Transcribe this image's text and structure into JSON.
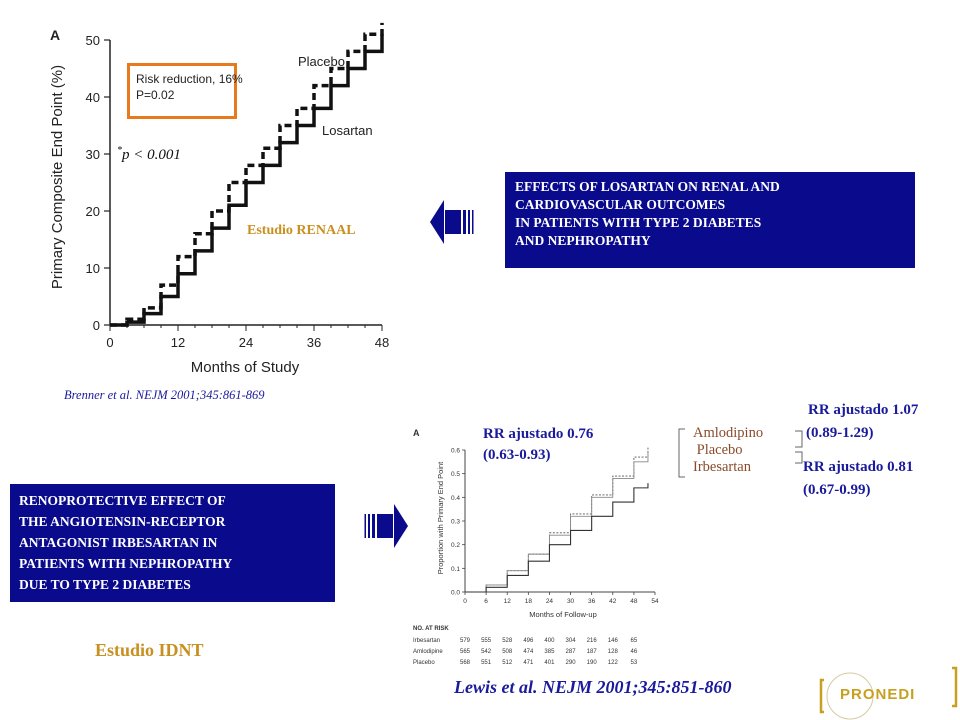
{
  "chart_data": [
    {
      "type": "line",
      "panel_label": "A",
      "xlabel": "Months of Study",
      "ylabel": "Primary Composite End Point (%)",
      "xlim": [
        0,
        48
      ],
      "ylim": [
        0,
        50
      ],
      "x_ticks": [
        "0",
        "12",
        "24",
        "36",
        "48"
      ],
      "y_ticks": [
        "0",
        "10",
        "20",
        "30",
        "40",
        "50"
      ],
      "series": [
        {
          "name": "Placebo",
          "style": "dashed",
          "x": [
            0,
            3,
            6,
            9,
            12,
            15,
            18,
            21,
            24,
            27,
            30,
            33,
            36,
            39,
            42,
            45,
            48
          ],
          "y": [
            0,
            1,
            3,
            7,
            12,
            16,
            20,
            25,
            28,
            31,
            35,
            38,
            42,
            45,
            48,
            51,
            53
          ]
        },
        {
          "name": "Losartan",
          "style": "solid",
          "x": [
            0,
            3,
            6,
            9,
            12,
            15,
            18,
            21,
            24,
            27,
            30,
            33,
            36,
            39,
            42,
            45,
            48
          ],
          "y": [
            0,
            0.5,
            2,
            5,
            9,
            13,
            17,
            21,
            25,
            28,
            32,
            35,
            38,
            42,
            45,
            48,
            51
          ]
        }
      ],
      "annotation": [
        "Risk reduction, 16%",
        "P=0.02"
      ]
    },
    {
      "type": "line",
      "panel_label": "A",
      "xlabel": "Months of Follow-up",
      "ylabel": "Proportion with Primary End Point",
      "xlim": [
        0,
        54
      ],
      "ylim": [
        0,
        0.6
      ],
      "x_ticks": [
        "0",
        "6",
        "12",
        "18",
        "24",
        "30",
        "36",
        "42",
        "48",
        "54"
      ],
      "y_ticks": [
        "0.0",
        "0.1",
        "0.2",
        "0.3",
        "0.4",
        "0.5",
        "0.6"
      ],
      "series": [
        {
          "name": "Amlodipine",
          "x": [
            0,
            6,
            12,
            18,
            24,
            30,
            36,
            42,
            48,
            52
          ],
          "y": [
            0,
            0.03,
            0.09,
            0.16,
            0.25,
            0.33,
            0.41,
            0.49,
            0.57,
            0.61
          ]
        },
        {
          "name": "Placebo",
          "x": [
            0,
            6,
            12,
            18,
            24,
            30,
            36,
            42,
            48,
            52
          ],
          "y": [
            0,
            0.03,
            0.09,
            0.16,
            0.24,
            0.32,
            0.4,
            0.48,
            0.55,
            0.59
          ]
        },
        {
          "name": "Irbesartan",
          "x": [
            0,
            6,
            12,
            18,
            24,
            30,
            36,
            42,
            48,
            52
          ],
          "y": [
            0,
            0.02,
            0.07,
            0.13,
            0.2,
            0.26,
            0.32,
            0.38,
            0.44,
            0.46
          ]
        }
      ],
      "risk_table": {
        "header": "NO. AT RISK",
        "rows": [
          {
            "label": "Irbesartan",
            "values": [
              "579",
              "555",
              "528",
              "496",
              "400",
              "304",
              "216",
              "146",
              "65"
            ]
          },
          {
            "label": "Amlodipine",
            "values": [
              "565",
              "542",
              "508",
              "474",
              "385",
              "287",
              "187",
              "128",
              "46"
            ]
          },
          {
            "label": "Placebo",
            "values": [
              "568",
              "551",
              "512",
              "471",
              "401",
              "290",
              "190",
              "122",
              "53"
            ]
          }
        ]
      }
    }
  ],
  "top": {
    "p_value": "p < 0.001",
    "p_star": "*",
    "study_label": "Estudio RENAAL",
    "box_lines": [
      "EFFECTS OF LOSARTAN ON RENAL AND",
      "CARDIOVASCULAR OUTCOMES",
      "IN PATIENTS WITH TYPE 2 DIABETES",
      "AND NEPHROPATHY"
    ],
    "citation": "Brenner et al. NEJM 2001;345:861-869"
  },
  "bottom": {
    "box_lines": [
      "RENOPROTECTIVE EFFECT OF",
      "THE ANGIOTENSIN-RECEPTOR",
      "ANTAGONIST IRBESARTAN IN",
      "PATIENTS WITH NEPHROPATHY",
      "DUE TO TYPE 2 DIABETES"
    ],
    "study_label": "Estudio IDNT",
    "rr1": [
      "RR ajustado  0.76",
      "(0.63-0.93)"
    ],
    "rr2": [
      "RR ajustado 1.07",
      "(0.89-1.29)"
    ],
    "rr3": [
      "RR ajustado 0.81",
      "(0.67-0.99)"
    ],
    "drugs": [
      "Amlodipino",
      " Placebo",
      "Irbesartan"
    ],
    "citation": "Lewis et al. NEJM 2001;345:851-860"
  },
  "logo": "PRONEDI",
  "colors": {
    "box_bg": "#0a0a8c",
    "rr_text": "#1a1a9c",
    "study_label": "#c89020",
    "annotation_border": "#e87a1e",
    "drug_text": "#8a4a2a",
    "logo_text": "#c8a020"
  }
}
